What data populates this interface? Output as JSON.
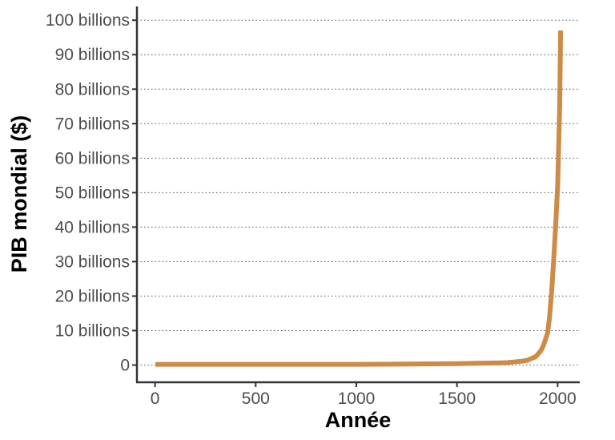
{
  "chart_data": {
    "type": "line",
    "xlabel": "Année",
    "ylabel": "PIB mondial ($)",
    "xlim": [
      -90,
      2110
    ],
    "ylim": [
      -5,
      104
    ],
    "x_ticks": [
      0,
      500,
      1000,
      1500,
      2000
    ],
    "x_tick_labels": [
      "0",
      "500",
      "1000",
      "1500",
      "2000"
    ],
    "y_ticks": [
      0,
      10,
      20,
      30,
      40,
      50,
      60,
      70,
      80,
      90,
      100
    ],
    "y_tick_labels": [
      "0",
      "10 billions",
      "20 billions",
      "30 billions",
      "40 billions",
      "50 billions",
      "60 billions",
      "70 billions",
      "80 billions",
      "90 billions",
      "100 billions"
    ],
    "grid": "horizontal dotted",
    "line_color": "#cd8b48",
    "series": [
      {
        "x": [
          1,
          500,
          1000,
          1250,
          1500,
          1600,
          1700,
          1750,
          1800,
          1820,
          1850,
          1870,
          1890,
          1900,
          1913,
          1920,
          1930,
          1940,
          1950,
          1960,
          1970,
          1980,
          1990,
          2000,
          2010,
          2015
        ],
        "y": [
          0.2,
          0.2,
          0.2,
          0.3,
          0.4,
          0.5,
          0.6,
          0.7,
          1.0,
          1.1,
          1.4,
          1.9,
          2.4,
          3.0,
          3.9,
          4.5,
          5.8,
          7.5,
          9.3,
          14,
          21,
          30,
          40,
          52,
          75,
          97
        ]
      }
    ]
  }
}
